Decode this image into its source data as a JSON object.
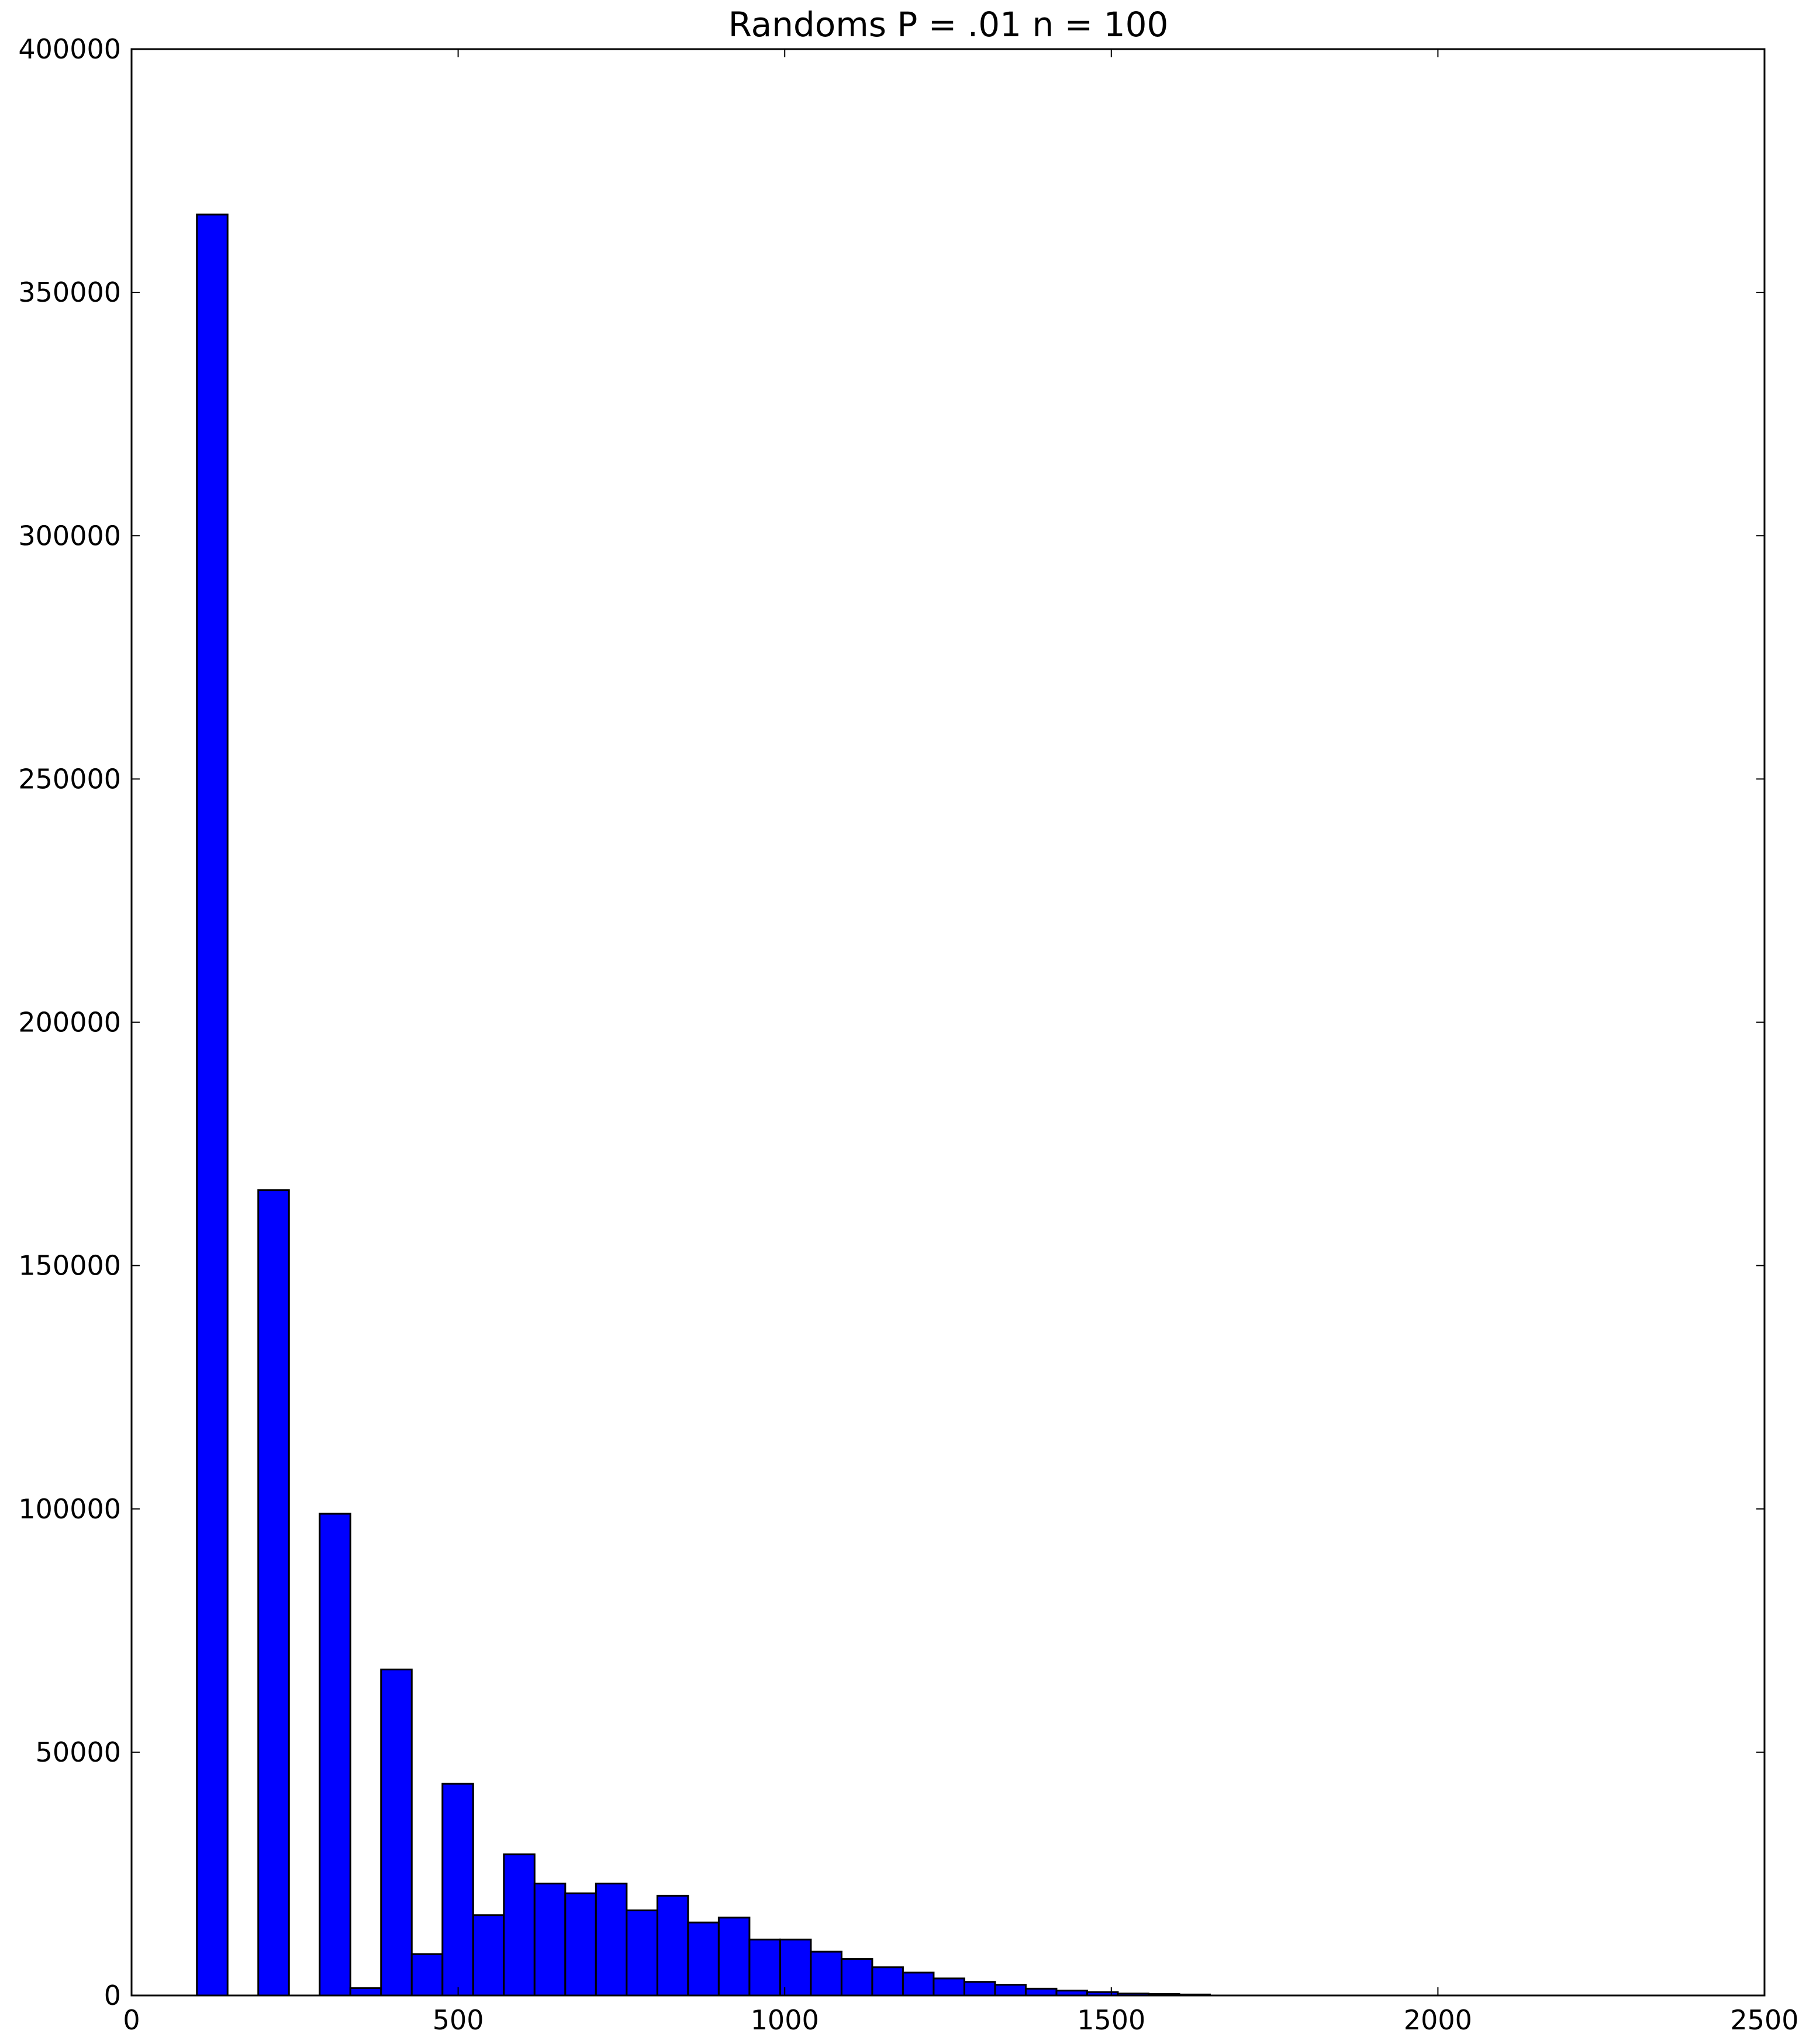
{
  "chart_data": {
    "type": "bar",
    "title": "Randoms P = .01 n = 100",
    "xlabel": "",
    "ylabel": "",
    "xlim": [
      0,
      2500
    ],
    "ylim": [
      0,
      400000
    ],
    "xticks": [
      "0",
      "500",
      "1000",
      "1500",
      "2000",
      "2500"
    ],
    "yticks": [
      "0",
      "50000",
      "100000",
      "150000",
      "200000",
      "250000",
      "300000",
      "350000",
      "400000"
    ],
    "grid": false,
    "legend": "none",
    "bar_color": "#0000ff",
    "edge_color": "#000000",
    "bin_width": 47,
    "bins": [
      {
        "x0": 100,
        "value": 366000
      },
      {
        "x0": 147,
        "value": 0
      },
      {
        "x0": 194,
        "value": 165500
      },
      {
        "x0": 241,
        "value": 0
      },
      {
        "x0": 288,
        "value": 99000
      },
      {
        "x0": 335,
        "value": 1500
      },
      {
        "x0": 382,
        "value": 67000
      },
      {
        "x0": 429,
        "value": 8500
      },
      {
        "x0": 476,
        "value": 43500
      },
      {
        "x0": 523,
        "value": 16500
      },
      {
        "x0": 570,
        "value": 29000
      },
      {
        "x0": 617,
        "value": 23000
      },
      {
        "x0": 664,
        "value": 21000
      },
      {
        "x0": 711,
        "value": 23000
      },
      {
        "x0": 758,
        "value": 17500
      },
      {
        "x0": 805,
        "value": 20500
      },
      {
        "x0": 852,
        "value": 15000
      },
      {
        "x0": 899,
        "value": 16000
      },
      {
        "x0": 946,
        "value": 11500
      },
      {
        "x0": 993,
        "value": 11500
      },
      {
        "x0": 1040,
        "value": 9000
      },
      {
        "x0": 1087,
        "value": 7500
      },
      {
        "x0": 1134,
        "value": 5800
      },
      {
        "x0": 1181,
        "value": 4700
      },
      {
        "x0": 1228,
        "value": 3500
      },
      {
        "x0": 1275,
        "value": 2800
      },
      {
        "x0": 1322,
        "value": 2200
      },
      {
        "x0": 1369,
        "value": 1400
      },
      {
        "x0": 1416,
        "value": 1000
      },
      {
        "x0": 1463,
        "value": 700
      },
      {
        "x0": 1510,
        "value": 400
      },
      {
        "x0": 1557,
        "value": 300
      },
      {
        "x0": 1604,
        "value": 200
      }
    ]
  }
}
